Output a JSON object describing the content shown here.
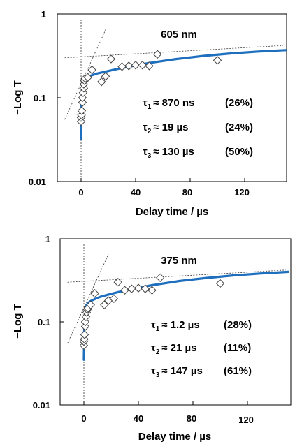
{
  "chart_data": [
    {
      "type": "scatter",
      "title": "605  nm",
      "xlabel": "Delay time / µs",
      "ylabel": "−Log T",
      "xlim": [
        -15,
        150
      ],
      "ylim": [
        0.01,
        1
      ],
      "y_scale": "log",
      "x_ticks": [
        "0",
        "40",
        "80",
        "120"
      ],
      "y_ticks": [
        "0.01",
        "0.1",
        "1"
      ],
      "annotations": [
        {
          "sym": "τ",
          "sub": "1",
          "val": "≈ 870 ns",
          "pct": "(26%)"
        },
        {
          "sym": "τ",
          "sub": "2",
          "val": "≈ 19 µs",
          "pct": "(24%)"
        },
        {
          "sym": "τ",
          "sub": "3",
          "val": "≈ 130 µs",
          "pct": "(50%)"
        }
      ],
      "series": [
        {
          "marker": "open-diamond",
          "x": [
            0,
            0,
            0.3,
            0.5,
            1,
            1,
            1.5,
            2,
            2,
            2.5,
            3,
            5,
            8,
            15,
            18,
            22,
            30,
            35,
            40,
            45,
            50,
            56,
            100
          ],
          "y": [
            0.052,
            0.058,
            0.062,
            0.07,
            0.088,
            0.1,
            0.115,
            0.13,
            0.145,
            0.16,
            0.17,
            0.175,
            0.215,
            0.155,
            0.18,
            0.29,
            0.235,
            0.24,
            0.245,
            0.245,
            0.24,
            0.33,
            0.28
          ]
        },
        {
          "marker": "line",
          "color": "#1f6fbf",
          "x": [
            0,
            0.3,
            0.7,
            1.2,
            2,
            3,
            5,
            8,
            12,
            18,
            25,
            35,
            50,
            70,
            90,
            110,
            130,
            150
          ],
          "y": [
            0.032,
            0.08,
            0.12,
            0.145,
            0.162,
            0.17,
            0.178,
            0.186,
            0.195,
            0.205,
            0.218,
            0.235,
            0.26,
            0.29,
            0.316,
            0.338,
            0.356,
            0.37
          ]
        }
      ]
    },
    {
      "type": "scatter",
      "title": "375  nm",
      "xlabel": "Delay time / µs",
      "ylabel": "−Log T",
      "xlim": [
        -15,
        150
      ],
      "ylim": [
        0.01,
        1
      ],
      "y_scale": "log",
      "x_ticks": [
        "0",
        "40",
        "80",
        "120"
      ],
      "y_ticks": [
        "0.01",
        "0.1",
        "1"
      ],
      "annotations": [
        {
          "sym": "τ",
          "sub": "1",
          "val": "≈ 1.2 µs",
          "pct": "(28%)"
        },
        {
          "sym": "τ",
          "sub": "2",
          "val": "≈ 21 µs",
          "pct": "(11%)"
        },
        {
          "sym": "τ",
          "sub": "3",
          "val": "≈ 147 µs",
          "pct": "(61%)"
        }
      ],
      "series": [
        {
          "marker": "open-diamond",
          "x": [
            0,
            0,
            0.3,
            0.5,
            1,
            1,
            1.5,
            2,
            2.5,
            3,
            5,
            8,
            15,
            18,
            22,
            25,
            30,
            35,
            40,
            45,
            50,
            56,
            100
          ],
          "y": [
            0.052,
            0.058,
            0.062,
            0.07,
            0.088,
            0.1,
            0.115,
            0.13,
            0.14,
            0.145,
            0.16,
            0.22,
            0.16,
            0.18,
            0.19,
            0.3,
            0.24,
            0.25,
            0.255,
            0.25,
            0.24,
            0.34,
            0.29
          ]
        },
        {
          "marker": "line",
          "color": "#1f6fbf",
          "x": [
            0,
            0.3,
            0.7,
            1.2,
            2,
            3,
            5,
            8,
            12,
            18,
            25,
            35,
            50,
            70,
            90,
            110,
            130,
            150
          ],
          "y": [
            0.035,
            0.085,
            0.122,
            0.142,
            0.158,
            0.168,
            0.178,
            0.188,
            0.2,
            0.213,
            0.228,
            0.248,
            0.276,
            0.31,
            0.338,
            0.362,
            0.382,
            0.4
          ]
        }
      ]
    }
  ]
}
